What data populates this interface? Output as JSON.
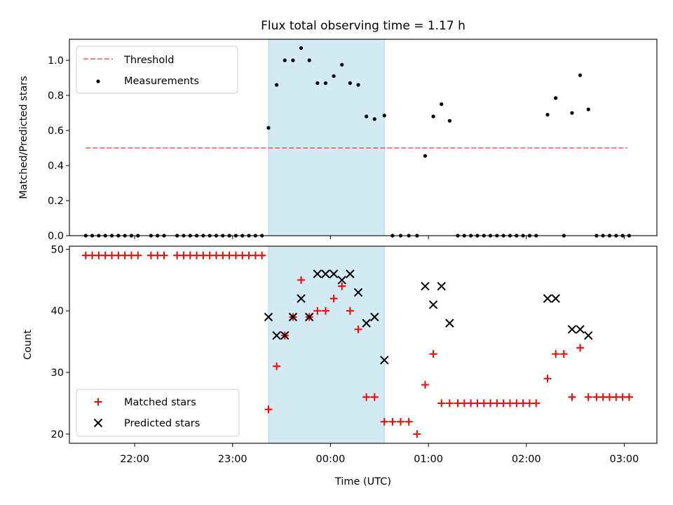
{
  "chart_data": {
    "title": "Flux total observing time = 1.17 h",
    "xlabel": "Time (UTC)",
    "x_ticks": [
      "22:00",
      "23:00",
      "00:00",
      "01:00",
      "02:00",
      "03:00"
    ],
    "x_range": [
      "21:20",
      "03:20"
    ],
    "highlight_window": [
      "23:22",
      "00:33"
    ],
    "colors": {
      "highlight": "#add8e6",
      "threshold": "#ff0000",
      "matched": "#ff0000",
      "predicted": "#000000",
      "measurements": "#000000"
    },
    "panels": [
      {
        "type": "scatter",
        "ylabel": "Matched/Predicted stars",
        "ylim": [
          0,
          1.12
        ],
        "y_ticks": [
          0.0,
          0.2,
          0.4,
          0.6,
          0.8,
          1.0
        ],
        "legend_position": "top-left",
        "threshold": {
          "name": "Threshold",
          "value": 0.5,
          "x_start": "21:30",
          "x_end": "03:02",
          "style": "dashed"
        },
        "series": [
          {
            "name": "Measurements",
            "marker": "dot",
            "points": [
              [
                "21:30",
                0
              ],
              [
                "21:34",
                0
              ],
              [
                "21:38",
                0
              ],
              [
                "21:42",
                0
              ],
              [
                "21:46",
                0
              ],
              [
                "21:50",
                0
              ],
              [
                "21:54",
                0
              ],
              [
                "21:58",
                0
              ],
              [
                "22:02",
                0
              ],
              [
                "22:10",
                0
              ],
              [
                "22:14",
                0
              ],
              [
                "22:18",
                0
              ],
              [
                "22:26",
                0
              ],
              [
                "22:30",
                0
              ],
              [
                "22:34",
                0
              ],
              [
                "22:38",
                0
              ],
              [
                "22:42",
                0
              ],
              [
                "22:46",
                0
              ],
              [
                "22:50",
                0
              ],
              [
                "22:54",
                0
              ],
              [
                "22:58",
                0
              ],
              [
                "23:02",
                0
              ],
              [
                "23:06",
                0
              ],
              [
                "23:10",
                0
              ],
              [
                "23:14",
                0
              ],
              [
                "23:18",
                0
              ],
              [
                "23:22",
                0.615
              ],
              [
                "23:27",
                0.86
              ],
              [
                "23:32",
                1.0
              ],
              [
                "23:37",
                1.0
              ],
              [
                "23:42",
                1.07
              ],
              [
                "23:47",
                1.0
              ],
              [
                "23:52",
                0.87
              ],
              [
                "23:57",
                0.87
              ],
              [
                "00:02",
                0.91
              ],
              [
                "00:07",
                0.975
              ],
              [
                "00:12",
                0.87
              ],
              [
                "00:17",
                0.86
              ],
              [
                "00:22",
                0.68
              ],
              [
                "00:27",
                0.665
              ],
              [
                "00:33",
                0.685
              ],
              [
                "00:38",
                0
              ],
              [
                "00:43",
                0
              ],
              [
                "00:48",
                0
              ],
              [
                "00:53",
                0
              ],
              [
                "00:58",
                0.455
              ],
              [
                "01:03",
                0.68
              ],
              [
                "01:08",
                0.75
              ],
              [
                "01:13",
                0.655
              ],
              [
                "01:18",
                0
              ],
              [
                "01:22",
                0
              ],
              [
                "01:26",
                0
              ],
              [
                "01:30",
                0
              ],
              [
                "01:34",
                0
              ],
              [
                "01:38",
                0
              ],
              [
                "01:42",
                0
              ],
              [
                "01:46",
                0
              ],
              [
                "01:50",
                0
              ],
              [
                "01:54",
                0
              ],
              [
                "01:58",
                0
              ],
              [
                "02:02",
                0
              ],
              [
                "02:06",
                0
              ],
              [
                "02:13",
                0.69
              ],
              [
                "02:18",
                0.785
              ],
              [
                "02:23",
                0
              ],
              [
                "02:28",
                0.7
              ],
              [
                "02:33",
                0.915
              ],
              [
                "02:38",
                0.72
              ],
              [
                "02:43",
                0
              ],
              [
                "02:47",
                0
              ],
              [
                "02:51",
                0
              ],
              [
                "02:55",
                0
              ],
              [
                "02:59",
                0
              ],
              [
                "03:03",
                0
              ]
            ]
          }
        ]
      },
      {
        "type": "scatter",
        "ylabel": "Count",
        "ylim": [
          18.5,
          50.5
        ],
        "y_ticks": [
          20,
          30,
          40,
          50
        ],
        "legend_position": "bottom-left",
        "series": [
          {
            "name": "Matched stars",
            "marker": "plus",
            "points": [
              [
                "21:30",
                49
              ],
              [
                "21:34",
                49
              ],
              [
                "21:38",
                49
              ],
              [
                "21:42",
                49
              ],
              [
                "21:46",
                49
              ],
              [
                "21:50",
                49
              ],
              [
                "21:54",
                49
              ],
              [
                "21:58",
                49
              ],
              [
                "22:02",
                49
              ],
              [
                "22:10",
                49
              ],
              [
                "22:14",
                49
              ],
              [
                "22:18",
                49
              ],
              [
                "22:26",
                49
              ],
              [
                "22:30",
                49
              ],
              [
                "22:34",
                49
              ],
              [
                "22:38",
                49
              ],
              [
                "22:42",
                49
              ],
              [
                "22:46",
                49
              ],
              [
                "22:50",
                49
              ],
              [
                "22:54",
                49
              ],
              [
                "22:58",
                49
              ],
              [
                "23:02",
                49
              ],
              [
                "23:06",
                49
              ],
              [
                "23:10",
                49
              ],
              [
                "23:14",
                49
              ],
              [
                "23:18",
                49
              ],
              [
                "23:22",
                24
              ],
              [
                "23:27",
                31
              ],
              [
                "23:32",
                36
              ],
              [
                "23:37",
                39
              ],
              [
                "23:42",
                45
              ],
              [
                "23:47",
                39
              ],
              [
                "23:52",
                40
              ],
              [
                "23:57",
                40
              ],
              [
                "00:02",
                42
              ],
              [
                "00:07",
                44
              ],
              [
                "00:12",
                40
              ],
              [
                "00:17",
                37
              ],
              [
                "00:22",
                26
              ],
              [
                "00:27",
                26
              ],
              [
                "00:33",
                22
              ],
              [
                "00:38",
                22
              ],
              [
                "00:43",
                22
              ],
              [
                "00:48",
                22
              ],
              [
                "00:53",
                20
              ],
              [
                "00:58",
                28
              ],
              [
                "01:03",
                33
              ],
              [
                "01:08",
                25
              ],
              [
                "01:13",
                25
              ],
              [
                "01:18",
                25
              ],
              [
                "01:22",
                25
              ],
              [
                "01:26",
                25
              ],
              [
                "01:30",
                25
              ],
              [
                "01:34",
                25
              ],
              [
                "01:38",
                25
              ],
              [
                "01:42",
                25
              ],
              [
                "01:46",
                25
              ],
              [
                "01:50",
                25
              ],
              [
                "01:54",
                25
              ],
              [
                "01:58",
                25
              ],
              [
                "02:02",
                25
              ],
              [
                "02:06",
                25
              ],
              [
                "02:13",
                29
              ],
              [
                "02:18",
                33
              ],
              [
                "02:23",
                33
              ],
              [
                "02:28",
                26
              ],
              [
                "02:33",
                34
              ],
              [
                "02:38",
                26
              ],
              [
                "02:43",
                26
              ],
              [
                "02:47",
                26
              ],
              [
                "02:51",
                26
              ],
              [
                "02:55",
                26
              ],
              [
                "02:59",
                26
              ],
              [
                "03:03",
                26
              ]
            ]
          },
          {
            "name": "Predicted stars",
            "marker": "x",
            "points": [
              [
                "23:22",
                39
              ],
              [
                "23:27",
                36
              ],
              [
                "23:32",
                36
              ],
              [
                "23:37",
                39
              ],
              [
                "23:42",
                42
              ],
              [
                "23:47",
                39
              ],
              [
                "23:52",
                46
              ],
              [
                "23:57",
                46
              ],
              [
                "00:02",
                46
              ],
              [
                "00:07",
                45
              ],
              [
                "00:12",
                46
              ],
              [
                "00:17",
                43
              ],
              [
                "00:22",
                38
              ],
              [
                "00:27",
                39
              ],
              [
                "00:33",
                32
              ],
              [
                "00:58",
                44
              ],
              [
                "01:03",
                41
              ],
              [
                "01:08",
                44
              ],
              [
                "01:13",
                38
              ],
              [
                "02:13",
                42
              ],
              [
                "02:18",
                42
              ],
              [
                "02:28",
                37
              ],
              [
                "02:33",
                37
              ],
              [
                "02:38",
                36
              ]
            ]
          }
        ]
      }
    ]
  }
}
